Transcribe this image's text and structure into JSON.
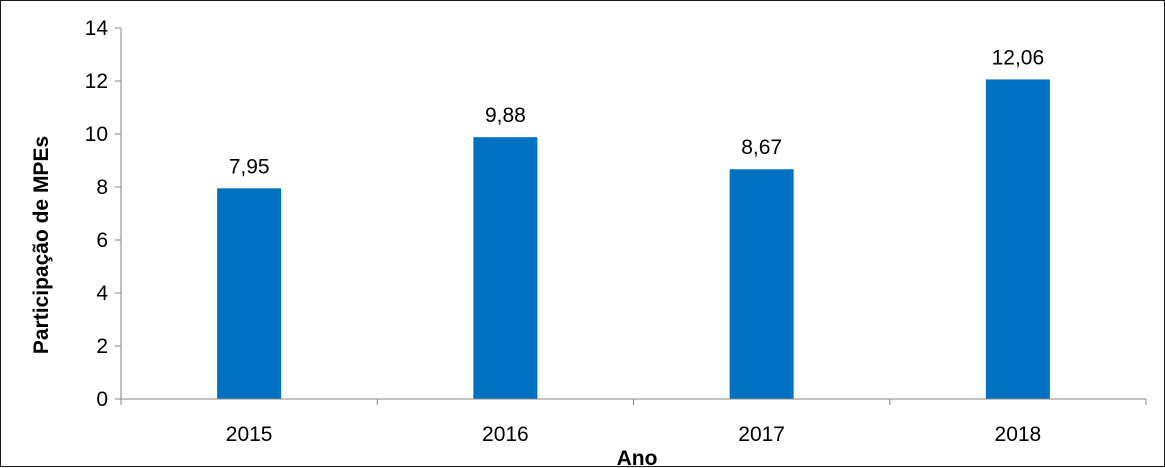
{
  "chart_data": {
    "type": "bar",
    "categories": [
      "2015",
      "2016",
      "2017",
      "2018"
    ],
    "values": [
      7.95,
      9.88,
      8.67,
      12.06
    ],
    "value_labels": [
      "7,95",
      "9,88",
      "8,67",
      "12,06"
    ],
    "title": "",
    "xlabel": "Ano",
    "ylabel": "Participação de MPEs",
    "ylim": [
      0,
      14
    ],
    "yticks": [
      0,
      2,
      4,
      6,
      8,
      10,
      12,
      14
    ],
    "grid": false,
    "legend": "none",
    "bar_color": "#0070C0"
  }
}
